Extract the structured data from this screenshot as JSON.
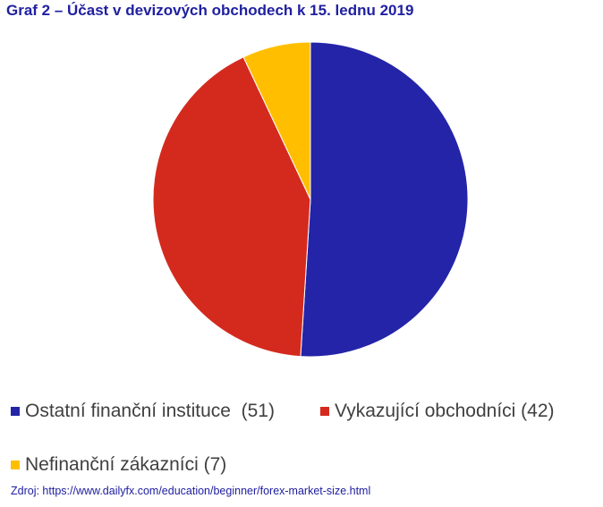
{
  "chart_data": {
    "type": "pie",
    "title": "Graf 2 – Účast v devizových obchodech k 15. lednu 2019",
    "slices": [
      {
        "label": "Ostatní finanční instituce",
        "value": 51,
        "color": "#2424a8"
      },
      {
        "label": "Vykazující obchodníci",
        "value": 42,
        "color": "#d42a1e"
      },
      {
        "label": "Nefinanční zákazníci",
        "value": 7,
        "color": "#ffbf00"
      }
    ],
    "legend": {
      "placement": "bottom",
      "items": [
        "Ostatní finanční instituce  (51)",
        "Vykazující obchodníci (42)",
        "Nefinanční zákazníci (7)"
      ]
    },
    "source": "Zdroj: https://www.dailyfx.com/education/beginner/forex-market-size.html"
  }
}
